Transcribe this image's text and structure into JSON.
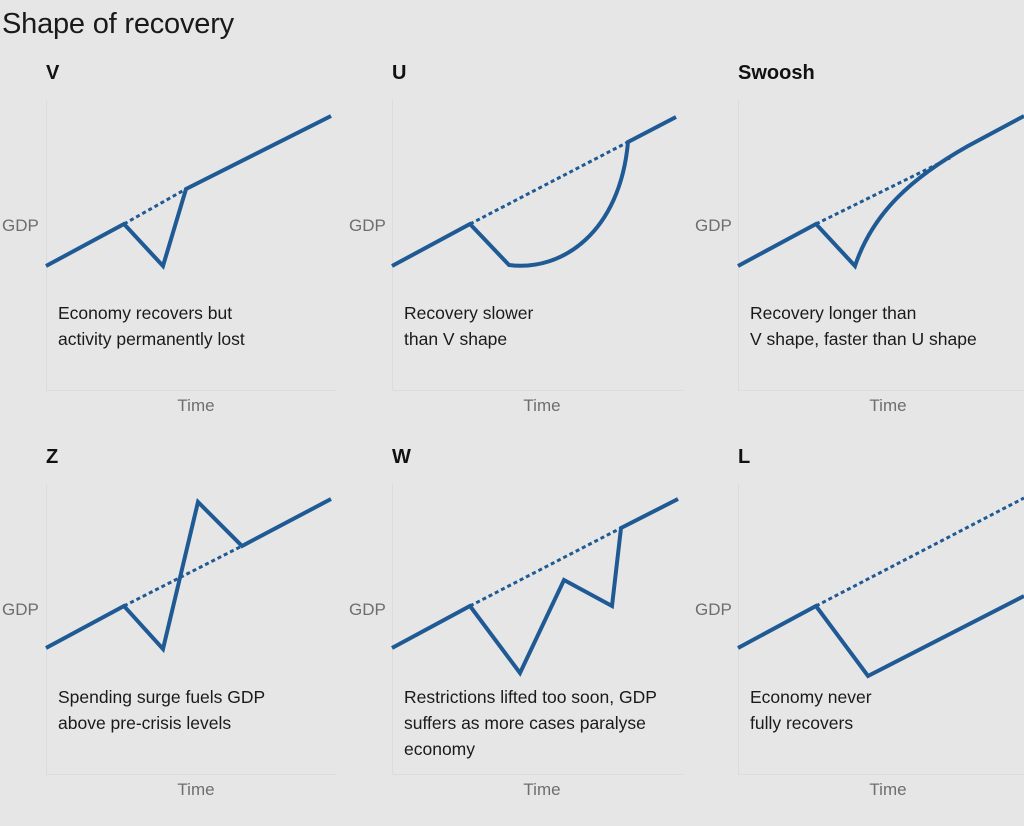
{
  "title": "Shape of recovery",
  "panels": [
    {
      "id": "v",
      "letter": "V",
      "caption": "Economy recovers but\nactivity permanently lost",
      "y_label": "GDP",
      "x_label": "Time"
    },
    {
      "id": "u",
      "letter": "U",
      "caption": "Recovery slower\nthan V shape",
      "y_label": "GDP",
      "x_label": "Time"
    },
    {
      "id": "swoosh",
      "letter": "Swoosh",
      "caption": "Recovery longer than\nV shape, faster than U shape",
      "y_label": "GDP",
      "x_label": "Time"
    },
    {
      "id": "z",
      "letter": "Z",
      "caption": "Spending surge fuels GDP\nabove pre-crisis levels",
      "y_label": "GDP",
      "x_label": "Time"
    },
    {
      "id": "w",
      "letter": "W",
      "caption": "Restrictions lifted too soon, GDP\nsuffers as more cases paralyse\neconomy",
      "y_label": "GDP",
      "x_label": "Time"
    },
    {
      "id": "l",
      "letter": "L",
      "caption": "Economy never\nfully recovers",
      "y_label": "GDP",
      "x_label": "Time"
    }
  ],
  "colors": {
    "line": "#1f5a94",
    "axis_label": "#6e6e6e",
    "background": "#e6e6e6"
  }
}
